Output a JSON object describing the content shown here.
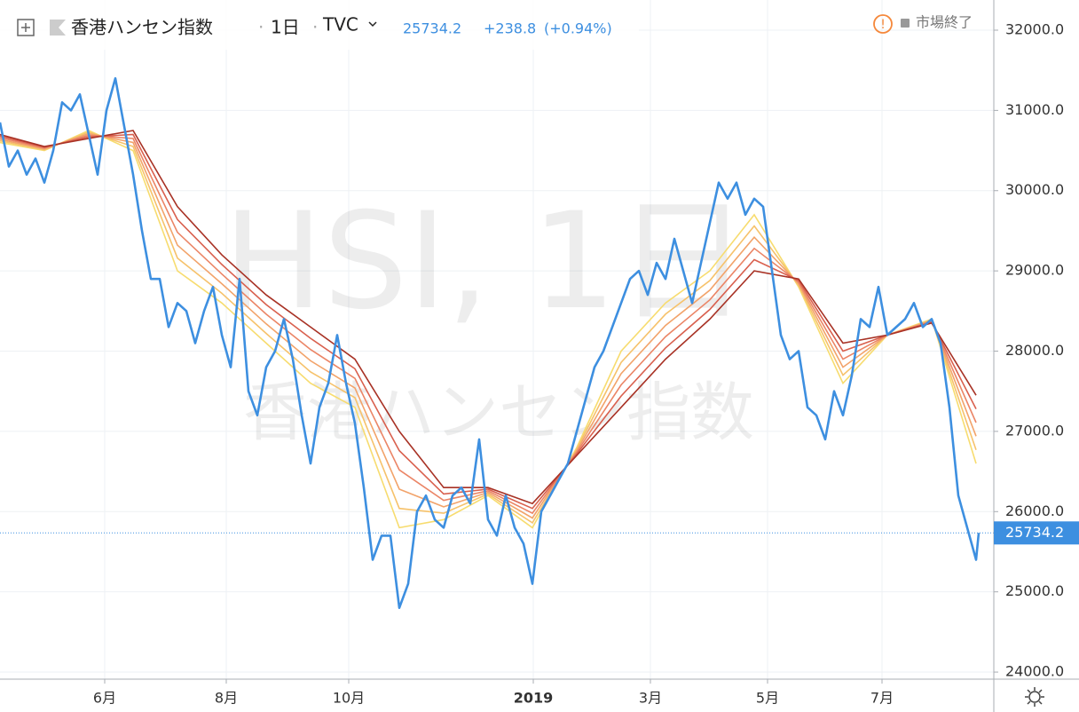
{
  "chart_data": {
    "type": "line",
    "symbol": "香港ハンセン指数",
    "interval": "1日",
    "source": "TVC",
    "change": "+238.8",
    "change_pct": "(+0.94%)",
    "status": "市場終了",
    "watermark": "HSI, 1日",
    "x": [
      0,
      10,
      20,
      30,
      40,
      50,
      60,
      70,
      80,
      90,
      100,
      110,
      120,
      130,
      140,
      150,
      160,
      170,
      180,
      190,
      200,
      210,
      220,
      230,
      240,
      250,
      260,
      270,
      280,
      290,
      300,
      310,
      320,
      330,
      340,
      350,
      360,
      370,
      380,
      390,
      400,
      410,
      420,
      430,
      440,
      450,
      460,
      470,
      480,
      490,
      500,
      510,
      520,
      530,
      540,
      550,
      560,
      570,
      580,
      590,
      600,
      610,
      620,
      630,
      640,
      650,
      660,
      670,
      680,
      690,
      700,
      710,
      720,
      730,
      740,
      750,
      760,
      770,
      780,
      790,
      800,
      810,
      820,
      830,
      840,
      850,
      860,
      870,
      880,
      890,
      900,
      910,
      920,
      930,
      940,
      950,
      960,
      970,
      980,
      990,
      1000,
      1010,
      1020,
      1030,
      1040,
      1050,
      1060,
      1070,
      1080,
      1090,
      1100,
      1103
    ],
    "series": [
      {
        "color": "#3d8fe0",
        "values": [
          30850,
          30300,
          30500,
          30200,
          30400,
          30100,
          30500,
          31100,
          31000,
          31200,
          30700,
          30200,
          31000,
          31400,
          30800,
          30200,
          29500,
          28900,
          28900,
          28300,
          28600,
          28500,
          28100,
          28500,
          28800,
          28200,
          27800,
          28900,
          27500,
          27200,
          27800,
          28000,
          28400,
          27900,
          27200,
          26600,
          27300,
          27600,
          28200,
          27600,
          27100,
          26300,
          25400,
          25700,
          25700,
          24800,
          25100,
          26000,
          26200,
          25900,
          25800,
          26200,
          26300,
          26100,
          26900,
          25900,
          25700,
          26200,
          25800,
          25600,
          25100,
          26000,
          26200,
          26400,
          26600,
          27000,
          27400,
          27800,
          28000,
          28300,
          28600,
          28900,
          29000,
          28700,
          29100,
          28900,
          29400,
          29000,
          28600,
          29100,
          29600,
          30100,
          29900,
          30100,
          29700,
          29900,
          29800,
          29000,
          28200,
          27900,
          28000,
          27300,
          27200,
          26900,
          27500,
          27200,
          27700,
          28400,
          28300,
          28800,
          28200,
          28300,
          28400,
          28600,
          28300,
          28400,
          28100,
          27300,
          26200,
          25800,
          25400,
          25734.2
        ]
      }
    ],
    "ribbon": {
      "x": [
        0,
        50,
        100,
        150,
        200,
        250,
        300,
        350,
        400,
        450,
        500,
        550,
        600,
        650,
        700,
        750,
        800,
        850,
        900,
        950,
        1000,
        1050,
        1100
      ],
      "series": [
        {
          "color": "#f7dc6f",
          "values": [
            30600,
            30500,
            30750,
            30500,
            29000,
            28600,
            28100,
            27600,
            27300,
            25800,
            25900,
            26200,
            25800,
            26800,
            28000,
            28600,
            29000,
            29700,
            28800,
            27600,
            28200,
            28400,
            26600
          ]
        },
        {
          "color": "#f6c26b",
          "values": [
            30620,
            30510,
            30730,
            30550,
            29160,
            28720,
            28220,
            27740,
            27420,
            26040,
            25980,
            26220,
            25860,
            26780,
            27860,
            28460,
            28880,
            29560,
            28820,
            27700,
            28200,
            28390,
            26770
          ]
        },
        {
          "color": "#f2a36a",
          "values": [
            30640,
            30520,
            30710,
            30600,
            29320,
            28840,
            28340,
            27880,
            27540,
            26280,
            26060,
            26240,
            25920,
            26760,
            27720,
            28320,
            28760,
            29420,
            28840,
            27800,
            28200,
            28380,
            26940
          ]
        },
        {
          "color": "#eb8566",
          "values": [
            30660,
            30530,
            30690,
            30650,
            29480,
            28960,
            28460,
            28020,
            27660,
            26520,
            26140,
            26260,
            25980,
            26740,
            27580,
            28180,
            28640,
            29280,
            28860,
            27900,
            28200,
            28370,
            27110
          ]
        },
        {
          "color": "#d9604e",
          "values": [
            30680,
            30540,
            30670,
            30700,
            29640,
            29080,
            28580,
            28160,
            27780,
            26760,
            26220,
            26280,
            26040,
            26720,
            27440,
            28040,
            28520,
            29140,
            28880,
            28000,
            28200,
            28360,
            27280
          ]
        },
        {
          "color": "#a83225",
          "values": [
            30700,
            30550,
            30650,
            30750,
            29800,
            29200,
            28700,
            28300,
            27900,
            27000,
            26300,
            26300,
            26100,
            26700,
            27300,
            27900,
            28400,
            29000,
            28900,
            28100,
            28200,
            28350,
            27450
          ]
        }
      ]
    },
    "xlim": [
      0,
      1120
    ],
    "xticks": [
      {
        "value": 118,
        "label": "6月"
      },
      {
        "value": 255,
        "label": "8月"
      },
      {
        "value": 393,
        "label": "10月"
      },
      {
        "value": 601,
        "label": "2019"
      },
      {
        "value": 733,
        "label": "3月"
      },
      {
        "value": 865,
        "label": "5月"
      },
      {
        "value": 994,
        "label": "7月"
      }
    ],
    "ylim": [
      23912,
      32376
    ],
    "yticks": [
      {
        "value": 24000,
        "label": "24000.0"
      },
      {
        "value": 25000,
        "label": "25000.0"
      },
      {
        "value": 26000,
        "label": "26000.0"
      },
      {
        "value": 27000,
        "label": "27000.0"
      },
      {
        "value": 28000,
        "label": "28000.0"
      },
      {
        "value": 29000,
        "label": "29000.0"
      },
      {
        "value": 30000,
        "label": "30000.0"
      },
      {
        "value": 31000,
        "label": "31000.0"
      },
      {
        "value": 32000,
        "label": "32000.0"
      }
    ],
    "grid": true
  }
}
